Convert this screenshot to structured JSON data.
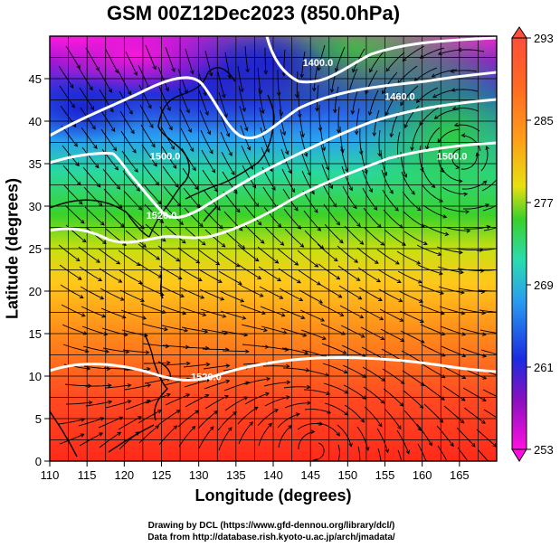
{
  "title": "GSM 00Z12Dec2023 (850.0hPa)",
  "xlabel": "Longitude (degrees)",
  "ylabel": "Latitude  (degrees)",
  "credit_line1": "Drawing by DCL (https://www.gfd-dennou.org/library/dcl/)",
  "credit_line2": "Data from http://database.rish.kyoto-u.ac.jp/arch/jmadata/",
  "chart_data": {
    "type": "heatmap",
    "x_range": [
      110,
      170
    ],
    "y_range": [
      0,
      50
    ],
    "x_ticks": [
      "110",
      "115",
      "120",
      "125",
      "130",
      "135",
      "140",
      "145",
      "150",
      "155",
      "160",
      "165"
    ],
    "y_ticks": [
      "0",
      "5",
      "10",
      "15",
      "20",
      "25",
      "30",
      "35",
      "40",
      "45"
    ],
    "colorbar": {
      "min": 253,
      "max": 293,
      "tick_labels": [
        "293",
        "285",
        "277",
        "269",
        "261",
        "253"
      ],
      "colors": [
        "#ff4e3a",
        "#ff9a1a",
        "#e8e010",
        "#3ad02a",
        "#2adcb0",
        "#2a9cf0",
        "#1a2ce0",
        "#8a10c0",
        "#ff10e0"
      ]
    },
    "contour_labels": [
      {
        "text": "1400.0",
        "lon": 146,
        "lat": 46.5
      },
      {
        "text": "1460.0",
        "lon": 157,
        "lat": 42.5
      },
      {
        "text": "1500.0",
        "lon": 164,
        "lat": 35.5
      },
      {
        "text": "1500.0",
        "lon": 125.5,
        "lat": 35.5
      },
      {
        "text": "1520.0",
        "lon": 125,
        "lat": 28.5
      },
      {
        "text": "1520.0",
        "lon": 131,
        "lat": 9.5
      }
    ],
    "fields": [
      "temperature (shaded)",
      "geopotential height (contours)",
      "wind (streamlines)"
    ]
  }
}
